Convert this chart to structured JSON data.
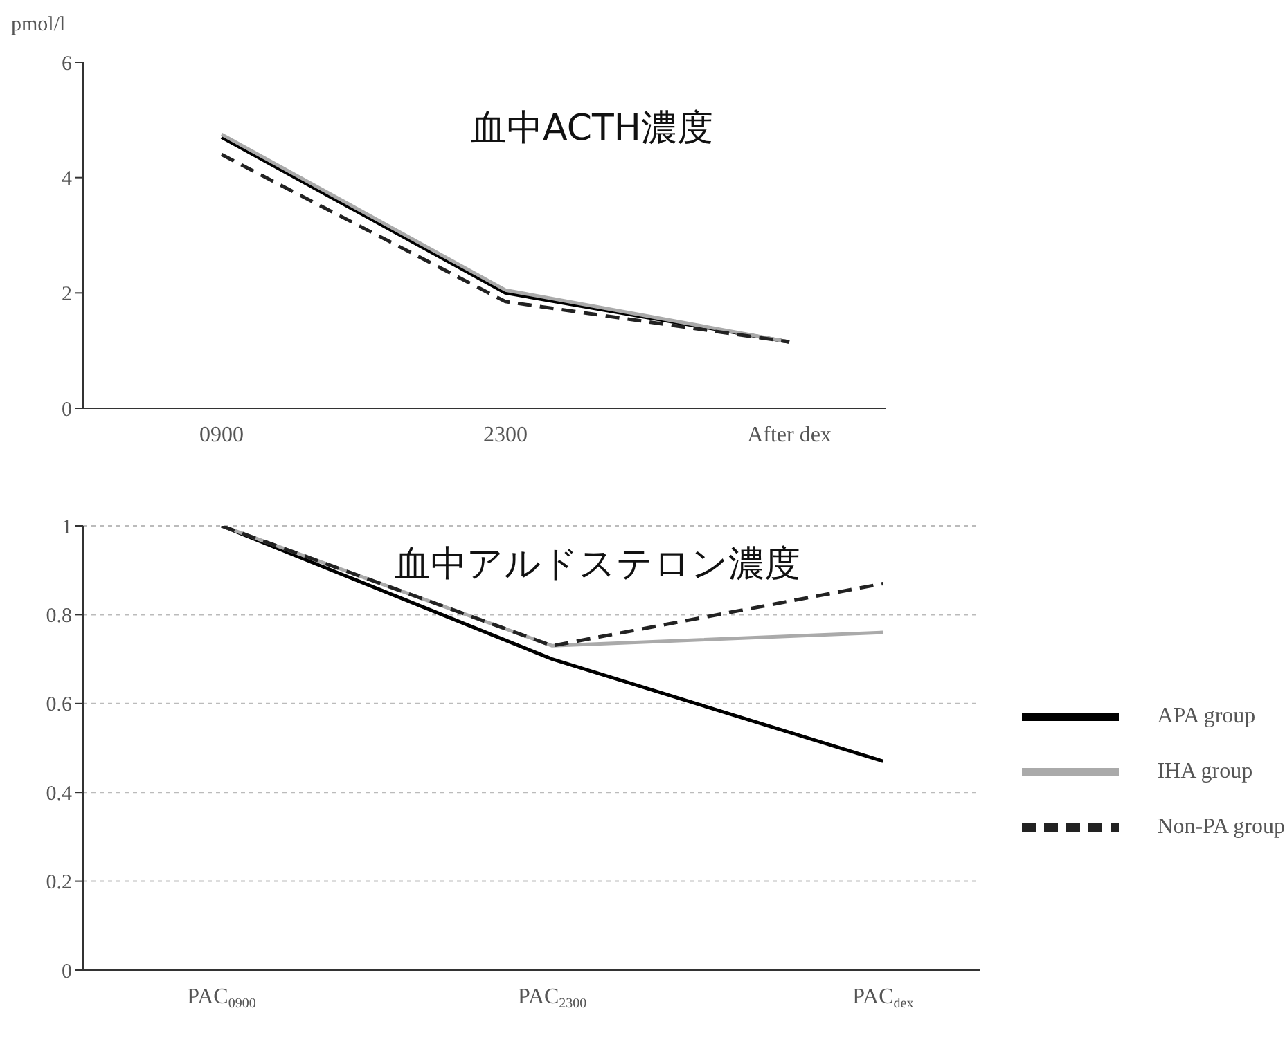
{
  "chart_data": [
    {
      "type": "line",
      "title": "血中ACTH濃度",
      "ylabel": "pmol/l",
      "categories": [
        "0900",
        "2300",
        "After dex"
      ],
      "ylim": [
        0,
        6
      ],
      "yticks": [
        0,
        2,
        4,
        6
      ],
      "grid": false,
      "marker": "none",
      "series": [
        {
          "color": "#000000",
          "values": [
            4.7,
            2.0,
            1.15
          ]
        },
        {
          "color": "#aaaaaa",
          "values": [
            4.75,
            2.05,
            1.15
          ]
        },
        {
          "color": "#222222",
          "line_style": "dashed",
          "values": [
            4.4,
            1.85,
            1.15
          ]
        }
      ]
    },
    {
      "type": "line",
      "title": "血中アルドステロン濃度",
      "categories": [
        "PAC$_{0900}$",
        "PAC$_{2300}$",
        "PAC$_{dex}$"
      ],
      "ylim": [
        0,
        1
      ],
      "yticks": [
        0,
        0.2,
        0.4,
        0.6,
        0.8,
        1
      ],
      "grid": "y",
      "legend": "right",
      "marker": "none",
      "series": [
        {
          "name": "APA group",
          "color": "#000000",
          "values": [
            1,
            0.7,
            0.47
          ]
        },
        {
          "name": "IHA group",
          "color": "#aaaaaa",
          "values": [
            1,
            0.73,
            0.76
          ]
        },
        {
          "name": "Non-PA group",
          "color": "#222222",
          "line_style": "dashed",
          "values": [
            1,
            0.73,
            0.87
          ]
        }
      ]
    }
  ]
}
